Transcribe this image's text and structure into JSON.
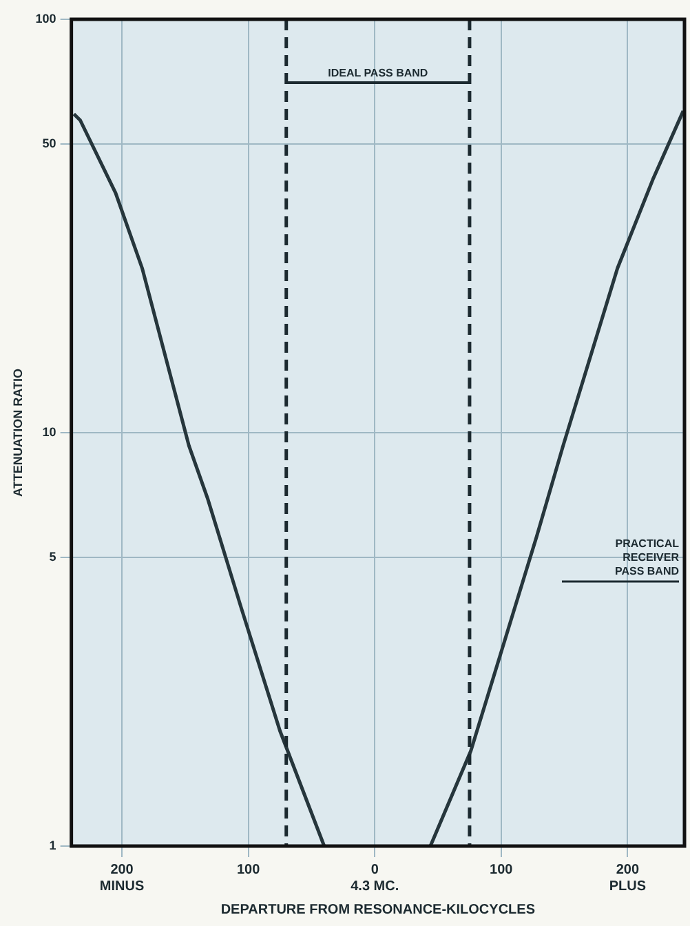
{
  "chart_data": {
    "type": "line",
    "xlabel": "DEPARTURE FROM RESONANCE-KILOCYCLES",
    "ylabel": "ATTENUATION RATIO",
    "x": [
      -238,
      -233,
      -205,
      -184,
      -147,
      -132,
      -106,
      -75,
      -40,
      0,
      44,
      76,
      128,
      149,
      192,
      220,
      244
    ],
    "series": [
      {
        "color": "#26363c",
        "values": [
          59,
          57,
          38,
          25,
          9.3,
          6.9,
          3.8,
          1.9,
          1,
          null,
          1,
          1.7,
          5.6,
          9.3,
          25,
          41,
          60
        ]
      }
    ],
    "xlim": [
      -240,
      245
    ],
    "xticks": [
      {
        "value": -200,
        "label": "200\nMINUS"
      },
      {
        "value": -100,
        "label": "100"
      },
      {
        "value": 0,
        "label": "0\n4.3 MC."
      },
      {
        "value": 100,
        "label": "100"
      },
      {
        "value": 200,
        "label": "200\nPLUS"
      }
    ],
    "ylim": [
      1,
      100
    ],
    "yticks": [
      1,
      5,
      10,
      50,
      100
    ],
    "log": "y",
    "grid": true,
    "marker": "none",
    "line_style": "solid",
    "ref_lines": [
      {
        "axis": "x",
        "value": -70,
        "label": null,
        "line_style": "dashed",
        "color": "#1c2a30"
      },
      {
        "axis": "x",
        "value": 75,
        "label": null,
        "line_style": "dashed",
        "color": "#1c2a30"
      }
    ],
    "annotations": [
      "IDEAL PASS BAND",
      "PRACTICAL RECEIVER PASS BAND"
    ]
  }
}
